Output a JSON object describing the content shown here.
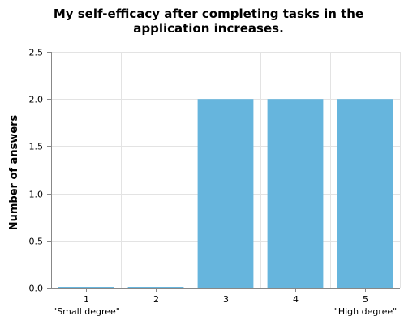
{
  "chart_data": {
    "type": "bar",
    "title_lines": [
      "My self-efficacy after completing tasks in the",
      "application increases."
    ],
    "xlabel": "",
    "ylabel": "Number of answers",
    "categories": [
      "1",
      "2",
      "3",
      "4",
      "5"
    ],
    "category_sublabels": [
      "\"Small degree\"",
      "",
      "",
      "",
      "\"High degree\""
    ],
    "values": [
      0,
      0,
      2,
      2,
      2
    ],
    "ylim": [
      0,
      2.5
    ],
    "yticks": [
      "0.0",
      "0.5",
      "1.0",
      "1.5",
      "2.0",
      "2.5"
    ],
    "grid": true,
    "bar_color": "#66b5dd"
  }
}
